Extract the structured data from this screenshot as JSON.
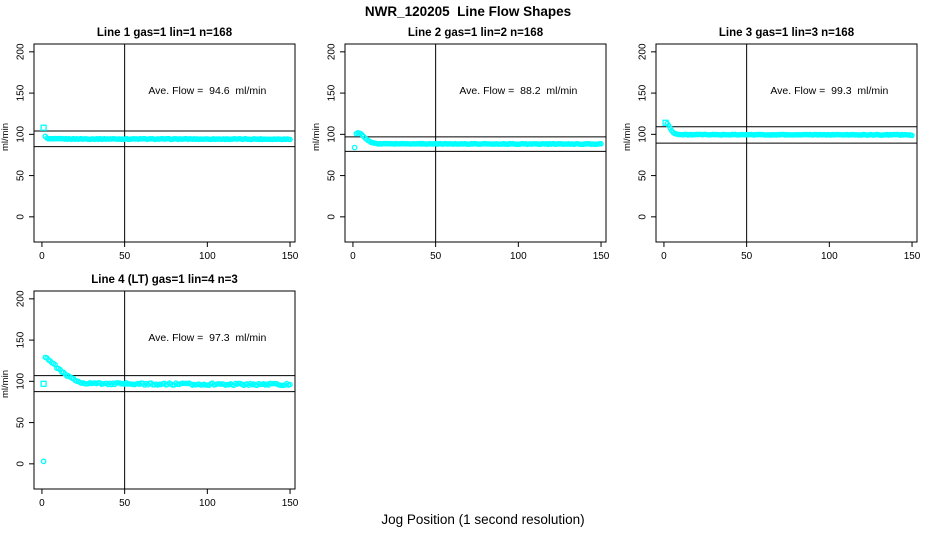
{
  "figure": {
    "title": "NWR_120205  Line Flow Shapes",
    "xlabel": "Jog Position (1 second resolution)",
    "background": "#ffffff",
    "point_color": "#00ffff",
    "axis_color": "#000000"
  },
  "chart_data": [
    {
      "type": "scatter",
      "title": "Line 1 gas=1 lin=1 n=168",
      "annotation": "Ave. Flow =  94.6  ml/min",
      "ave_flow": 94.6,
      "n": 168,
      "ylabel": "ml/min",
      "x_ticks": [
        0,
        50,
        100,
        150
      ],
      "y_ticks": [
        0,
        50,
        100,
        150,
        200
      ],
      "xlim": [
        -4.8,
        153.0
      ],
      "ylim": [
        -30.5,
        209.5
      ],
      "vline_x": 50,
      "hlines": [
        104.1,
        85.1
      ],
      "grid": false,
      "outliers": [
        {
          "x": 1,
          "y": 108,
          "shape": "square"
        },
        {
          "x": 2,
          "y": 97.5,
          "shape": "circle"
        }
      ],
      "series_keypoints": [
        [
          3,
          95.2
        ],
        [
          5,
          94.5
        ],
        [
          40,
          94.4
        ],
        [
          150,
          94.2
        ]
      ],
      "x_start": 3,
      "x_end": 150,
      "points_n": 166,
      "noise": 0.45,
      "seed": 1
    },
    {
      "type": "scatter",
      "title": "Line 2 gas=1 lin=2 n=168",
      "annotation": "Ave. Flow =  88.2  ml/min",
      "ave_flow": 88.2,
      "n": 168,
      "ylabel": "ml/min",
      "x_ticks": [
        0,
        50,
        100,
        150
      ],
      "y_ticks": [
        0,
        50,
        100,
        150,
        200
      ],
      "xlim": [
        -4.8,
        153.0
      ],
      "ylim": [
        -30.5,
        209.5
      ],
      "vline_x": 50,
      "hlines": [
        97.0,
        79.4
      ],
      "grid": false,
      "outliers": [
        {
          "x": 1,
          "y": 84,
          "shape": "circle"
        }
      ],
      "series_keypoints": [
        [
          2,
          101
        ],
        [
          3,
          102
        ],
        [
          5,
          100.5
        ],
        [
          7,
          96
        ],
        [
          9,
          92.5
        ],
        [
          12,
          89.5
        ],
        [
          16,
          88.6
        ],
        [
          150,
          88.2
        ]
      ],
      "x_start": 2,
      "x_end": 150,
      "points_n": 167,
      "noise": 0.4,
      "seed": 2
    },
    {
      "type": "scatter",
      "title": "Line 3 gas=1 lin=3 n=168",
      "annotation": "Ave. Flow =  99.3  ml/min",
      "ave_flow": 99.3,
      "n": 168,
      "ylabel": "ml/min",
      "x_ticks": [
        0,
        50,
        100,
        150
      ],
      "y_ticks": [
        0,
        50,
        100,
        150,
        200
      ],
      "xlim": [
        -4.8,
        153.0
      ],
      "ylim": [
        -30.5,
        209.5
      ],
      "vline_x": 50,
      "hlines": [
        109.2,
        89.4
      ],
      "grid": false,
      "outliers": [
        {
          "x": 1,
          "y": 114,
          "shape": "square"
        }
      ],
      "series_keypoints": [
        [
          2,
          113
        ],
        [
          3,
          110.5
        ],
        [
          4,
          106.5
        ],
        [
          5,
          103.5
        ],
        [
          7,
          100.5
        ],
        [
          10,
          99.6
        ],
        [
          145,
          99.4
        ],
        [
          150,
          99.0
        ]
      ],
      "x_start": 2,
      "x_end": 150,
      "points_n": 167,
      "noise": 0.4,
      "seed": 3
    },
    {
      "type": "scatter",
      "title": "Line 4 (LT) gas=1 lin=4 n=3",
      "annotation": "Ave. Flow =  97.3  ml/min",
      "ave_flow": 97.3,
      "n": 3,
      "ylabel": "ml/min",
      "x_ticks": [
        0,
        50,
        100,
        150
      ],
      "y_ticks": [
        0,
        50,
        100,
        150,
        200
      ],
      "xlim": [
        -4.8,
        153.0
      ],
      "ylim": [
        -30.5,
        209.5
      ],
      "vline_x": 50,
      "hlines": [
        107.0,
        87.6
      ],
      "grid": false,
      "outliers": [
        {
          "x": 1,
          "y": 3,
          "shape": "circle"
        },
        {
          "x": 1,
          "y": 97,
          "shape": "square"
        }
      ],
      "series_keypoints": [
        [
          2,
          130
        ],
        [
          4,
          127
        ],
        [
          6,
          123
        ],
        [
          9,
          117
        ],
        [
          12,
          111.5
        ],
        [
          15,
          107
        ],
        [
          18,
          103.5
        ],
        [
          21,
          100.5
        ],
        [
          24,
          98.8
        ],
        [
          28,
          97.8
        ],
        [
          35,
          97.2
        ],
        [
          60,
          96.8
        ],
        [
          100,
          96.5
        ],
        [
          150,
          96.3
        ]
      ],
      "x_start": 2,
      "x_end": 150,
      "points_n": 149,
      "noise": 1.3,
      "seed": 4
    }
  ]
}
